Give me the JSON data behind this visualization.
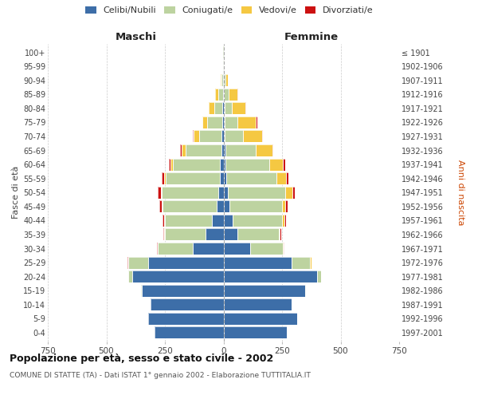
{
  "age_groups": [
    "0-4",
    "5-9",
    "10-14",
    "15-19",
    "20-24",
    "25-29",
    "30-34",
    "35-39",
    "40-44",
    "45-49",
    "50-54",
    "55-59",
    "60-64",
    "65-69",
    "70-74",
    "75-79",
    "80-84",
    "85-89",
    "90-94",
    "95-99",
    "100+"
  ],
  "birth_years": [
    "1997-2001",
    "1992-1996",
    "1987-1991",
    "1982-1986",
    "1977-1981",
    "1972-1976",
    "1967-1971",
    "1962-1966",
    "1957-1961",
    "1952-1956",
    "1947-1951",
    "1942-1946",
    "1937-1941",
    "1932-1936",
    "1927-1931",
    "1922-1926",
    "1917-1921",
    "1912-1916",
    "1907-1911",
    "1902-1906",
    "≤ 1901"
  ],
  "maschi_celibe": [
    295,
    320,
    310,
    350,
    390,
    320,
    130,
    75,
    50,
    30,
    22,
    17,
    15,
    10,
    8,
    4,
    4,
    2,
    2,
    0,
    0
  ],
  "maschi_coniug": [
    0,
    0,
    0,
    2,
    15,
    85,
    150,
    175,
    200,
    230,
    240,
    230,
    200,
    150,
    95,
    65,
    35,
    20,
    5,
    2,
    1
  ],
  "maschi_vedovi": [
    0,
    0,
    0,
    0,
    2,
    2,
    2,
    2,
    2,
    3,
    5,
    5,
    10,
    20,
    25,
    20,
    25,
    15,
    5,
    1,
    0
  ],
  "maschi_divorz": [
    0,
    0,
    0,
    0,
    0,
    2,
    3,
    5,
    8,
    10,
    12,
    10,
    8,
    5,
    4,
    2,
    0,
    0,
    0,
    0,
    0
  ],
  "femmine_celibe": [
    270,
    315,
    290,
    350,
    400,
    290,
    115,
    60,
    40,
    25,
    18,
    12,
    10,
    8,
    5,
    4,
    5,
    3,
    3,
    1,
    0
  ],
  "femmine_coniug": [
    0,
    0,
    0,
    2,
    15,
    80,
    140,
    175,
    210,
    225,
    245,
    215,
    185,
    130,
    80,
    55,
    30,
    18,
    5,
    2,
    1
  ],
  "femmine_vedovi": [
    0,
    0,
    0,
    0,
    2,
    5,
    3,
    5,
    10,
    15,
    30,
    40,
    60,
    70,
    80,
    80,
    60,
    40,
    10,
    3,
    1
  ],
  "femmine_divorz": [
    0,
    0,
    0,
    0,
    0,
    2,
    3,
    5,
    8,
    10,
    12,
    10,
    8,
    5,
    5,
    5,
    2,
    1,
    0,
    0,
    0
  ],
  "colors": {
    "celibe": "#3d6ea8",
    "coniug": "#bdd3a0",
    "vedovi": "#f5c842",
    "divorz": "#cc1111"
  },
  "title": "Popolazione per età, sesso e stato civile - 2002",
  "subtitle": "COMUNE DI STATTE (TA) - Dati ISTAT 1° gennaio 2002 - Elaborazione TUTTITALIA.IT",
  "xlabel_left": "Maschi",
  "xlabel_right": "Femmine",
  "ylabel_left": "Fasce di età",
  "ylabel_right": "Anni di nascita",
  "xlim": 750,
  "background_color": "#ffffff",
  "grid_color": "#cccccc"
}
